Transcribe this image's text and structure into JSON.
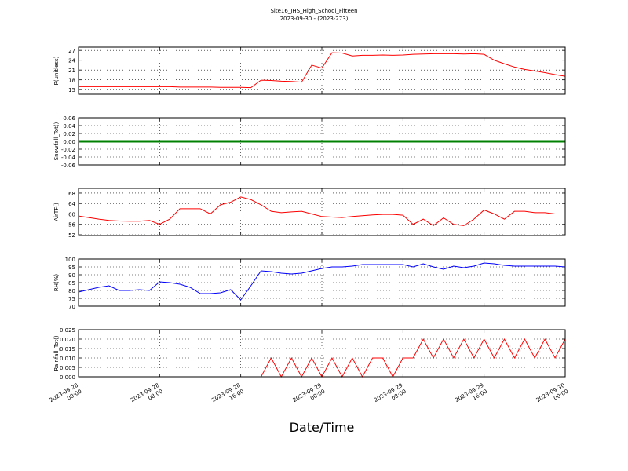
{
  "chart_data": [
    {
      "type": "line",
      "title": "Site16_JHS_High_School_Fifteen",
      "subtitle": "2023-09-30 - (2023-273)",
      "ylabel": "P(unitless)",
      "x": [
        "2023-09-28 00:00",
        "2023-09-28 01:00",
        "2023-09-28 02:00",
        "2023-09-28 03:00",
        "2023-09-28 04:00",
        "2023-09-28 05:00",
        "2023-09-28 06:00",
        "2023-09-28 07:00",
        "2023-09-28 08:00",
        "2023-09-28 09:00",
        "2023-09-28 10:00",
        "2023-09-28 11:00",
        "2023-09-28 12:00",
        "2023-09-28 13:00",
        "2023-09-28 14:00",
        "2023-09-28 15:00",
        "2023-09-28 16:00",
        "2023-09-28 17:00",
        "2023-09-28 18:00",
        "2023-09-28 19:00",
        "2023-09-28 20:00",
        "2023-09-28 21:00",
        "2023-09-28 22:00",
        "2023-09-28 23:00",
        "2023-09-29 00:00",
        "2023-09-29 01:00",
        "2023-09-29 02:00",
        "2023-09-29 03:00",
        "2023-09-29 04:00",
        "2023-09-29 05:00",
        "2023-09-29 06:00",
        "2023-09-29 07:00",
        "2023-09-29 08:00",
        "2023-09-29 09:00",
        "2023-09-29 10:00",
        "2023-09-29 11:00",
        "2023-09-29 12:00",
        "2023-09-29 13:00",
        "2023-09-29 14:00",
        "2023-09-29 15:00",
        "2023-09-29 16:00",
        "2023-09-29 17:00",
        "2023-09-29 18:00",
        "2023-09-29 19:00",
        "2023-09-29 20:00",
        "2023-09-29 21:00",
        "2023-09-29 22:00",
        "2023-09-29 23:00",
        "2023-09-30 00:00"
      ],
      "series": [
        {
          "color": "#ff0000",
          "values": [
            15.9,
            15.9,
            15.9,
            15.9,
            15.9,
            15.9,
            15.9,
            15.9,
            15.9,
            15.9,
            15.8,
            15.8,
            15.8,
            15.8,
            15.7,
            15.7,
            15.7,
            15.6,
            17.9,
            17.8,
            17.6,
            17.5,
            17.3,
            22.5,
            21.6,
            26.3,
            26.2,
            25.3,
            25.5,
            25.5,
            25.6,
            25.5,
            25.6,
            25.8,
            25.9,
            26,
            26,
            26,
            25.9,
            26,
            25.8,
            24,
            22.9,
            21.9,
            21.2,
            20.7,
            20.2,
            19.6,
            19.1
          ]
        }
      ],
      "ylim": [
        13.6,
        28
      ],
      "yticks": [
        15,
        18,
        21,
        24,
        27
      ],
      "grid": true
    },
    {
      "type": "line",
      "ylabel": "Snowfall_Tot()",
      "x": [
        "2023-09-28 00:00",
        "2023-09-28 01:00",
        "2023-09-28 02:00",
        "2023-09-28 03:00",
        "2023-09-28 04:00",
        "2023-09-28 05:00",
        "2023-09-28 06:00",
        "2023-09-28 07:00",
        "2023-09-28 08:00",
        "2023-09-28 09:00",
        "2023-09-28 10:00",
        "2023-09-28 11:00",
        "2023-09-28 12:00",
        "2023-09-28 13:00",
        "2023-09-28 14:00",
        "2023-09-28 15:00",
        "2023-09-28 16:00",
        "2023-09-28 17:00",
        "2023-09-28 18:00",
        "2023-09-28 19:00",
        "2023-09-28 20:00",
        "2023-09-28 21:00",
        "2023-09-28 22:00",
        "2023-09-28 23:00",
        "2023-09-29 00:00",
        "2023-09-29 01:00",
        "2023-09-29 02:00",
        "2023-09-29 03:00",
        "2023-09-29 04:00",
        "2023-09-29 05:00",
        "2023-09-29 06:00",
        "2023-09-29 07:00",
        "2023-09-29 08:00",
        "2023-09-29 09:00",
        "2023-09-29 10:00",
        "2023-09-29 11:00",
        "2023-09-29 12:00",
        "2023-09-29 13:00",
        "2023-09-29 14:00",
        "2023-09-29 15:00",
        "2023-09-29 16:00",
        "2023-09-29 17:00",
        "2023-09-29 18:00",
        "2023-09-29 19:00",
        "2023-09-29 20:00",
        "2023-09-29 21:00",
        "2023-09-29 22:00",
        "2023-09-29 23:00",
        "2023-09-30 00:00"
      ],
      "series": [
        {
          "color": "#008000",
          "values": [
            0,
            0,
            0,
            0,
            0,
            0,
            0,
            0,
            0,
            0,
            0,
            0,
            0,
            0,
            0,
            0,
            0,
            0,
            0,
            0,
            0,
            0,
            0,
            0,
            0,
            0,
            0,
            0,
            0,
            0,
            0,
            0,
            0,
            0,
            0,
            0,
            0,
            0,
            0,
            0,
            0,
            0,
            0,
            0,
            0,
            0,
            0,
            0,
            0
          ]
        }
      ],
      "ylim": [
        -0.06,
        0.06
      ],
      "yticks": [
        -0.06,
        -0.04,
        -0.02,
        {
          "value": 0,
          "label": "0.00"
        },
        0.02,
        0.04,
        0.06
      ],
      "grid": true
    },
    {
      "type": "line",
      "ylabel": "AirTF()",
      "x": [
        "2023-09-28 00:00",
        "2023-09-28 01:00",
        "2023-09-28 02:00",
        "2023-09-28 03:00",
        "2023-09-28 04:00",
        "2023-09-28 05:00",
        "2023-09-28 06:00",
        "2023-09-28 07:00",
        "2023-09-28 08:00",
        "2023-09-28 09:00",
        "2023-09-28 10:00",
        "2023-09-28 11:00",
        "2023-09-28 12:00",
        "2023-09-28 13:00",
        "2023-09-28 14:00",
        "2023-09-28 15:00",
        "2023-09-28 16:00",
        "2023-09-28 17:00",
        "2023-09-28 18:00",
        "2023-09-28 19:00",
        "2023-09-28 20:00",
        "2023-09-28 21:00",
        "2023-09-28 22:00",
        "2023-09-28 23:00",
        "2023-09-29 00:00",
        "2023-09-29 01:00",
        "2023-09-29 02:00",
        "2023-09-29 03:00",
        "2023-09-29 04:00",
        "2023-09-29 05:00",
        "2023-09-29 06:00",
        "2023-09-29 07:00",
        "2023-09-29 08:00",
        "2023-09-29 09:00",
        "2023-09-29 10:00",
        "2023-09-29 11:00",
        "2023-09-29 12:00",
        "2023-09-29 13:00",
        "2023-09-29 14:00",
        "2023-09-29 15:00",
        "2023-09-29 16:00",
        "2023-09-29 17:00",
        "2023-09-29 18:00",
        "2023-09-29 19:00",
        "2023-09-29 20:00",
        "2023-09-29 21:00",
        "2023-09-29 22:00",
        "2023-09-29 23:00",
        "2023-09-30 00:00"
      ],
      "series": [
        {
          "color": "#ff0000",
          "values": [
            59.2,
            58.6,
            58,
            57.5,
            57.3,
            57.2,
            57.2,
            57.5,
            56,
            58,
            62,
            62,
            62,
            60,
            63.5,
            64.5,
            66.5,
            65.5,
            63.5,
            61,
            60.5,
            60.8,
            61,
            60,
            59,
            58.8,
            58.6,
            59,
            59.3,
            59.6,
            59.8,
            59.8,
            59.5,
            56,
            58,
            55.5,
            58.5,
            56,
            55.5,
            58,
            61.5,
            60,
            58,
            61,
            61,
            60.5,
            60.5,
            60,
            60
          ]
        }
      ],
      "ylim": [
        51.7,
        69.8
      ],
      "yticks": [
        52,
        56,
        60,
        64,
        68
      ],
      "grid": true
    },
    {
      "type": "line",
      "ylabel": "RH(%)",
      "x": [
        "2023-09-28 00:00",
        "2023-09-28 01:00",
        "2023-09-28 02:00",
        "2023-09-28 03:00",
        "2023-09-28 04:00",
        "2023-09-28 05:00",
        "2023-09-28 06:00",
        "2023-09-28 07:00",
        "2023-09-28 08:00",
        "2023-09-28 09:00",
        "2023-09-28 10:00",
        "2023-09-28 11:00",
        "2023-09-28 12:00",
        "2023-09-28 13:00",
        "2023-09-28 14:00",
        "2023-09-28 15:00",
        "2023-09-28 16:00",
        "2023-09-28 17:00",
        "2023-09-28 18:00",
        "2023-09-28 19:00",
        "2023-09-28 20:00",
        "2023-09-28 21:00",
        "2023-09-28 22:00",
        "2023-09-28 23:00",
        "2023-09-29 00:00",
        "2023-09-29 01:00",
        "2023-09-29 02:00",
        "2023-09-29 03:00",
        "2023-09-29 04:00",
        "2023-09-29 05:00",
        "2023-09-29 06:00",
        "2023-09-29 07:00",
        "2023-09-29 08:00",
        "2023-09-29 09:00",
        "2023-09-29 10:00",
        "2023-09-29 11:00",
        "2023-09-29 12:00",
        "2023-09-29 13:00",
        "2023-09-29 14:00",
        "2023-09-29 15:00",
        "2023-09-29 16:00",
        "2023-09-29 17:00",
        "2023-09-29 18:00",
        "2023-09-29 19:00",
        "2023-09-29 20:00",
        "2023-09-29 21:00",
        "2023-09-29 22:00",
        "2023-09-29 23:00",
        "2023-09-30 00:00"
      ],
      "series": [
        {
          "color": "#0000ff",
          "values": [
            79,
            80.5,
            82,
            83,
            80,
            80,
            80.5,
            80,
            85.5,
            85,
            84,
            82,
            78,
            78,
            78.5,
            80.5,
            74,
            83,
            92.5,
            92,
            91,
            90.5,
            91,
            92.5,
            94,
            95,
            95,
            95.5,
            96.5,
            96.5,
            96.5,
            96.5,
            96.5,
            95,
            97,
            95,
            93.5,
            95.5,
            94.5,
            95.5,
            97.5,
            97,
            96,
            95.5,
            95.5,
            95.5,
            95.5,
            95.5,
            95
          ]
        }
      ],
      "ylim": [
        70,
        100
      ],
      "yticks": [
        70,
        75,
        80,
        85,
        90,
        95,
        100
      ],
      "grid": true
    },
    {
      "type": "line",
      "ylabel": "Rainfall_Tot()",
      "xlabel": "Date/Time",
      "x": [
        "2023-09-28 00:00",
        "2023-09-28 01:00",
        "2023-09-28 02:00",
        "2023-09-28 03:00",
        "2023-09-28 04:00",
        "2023-09-28 05:00",
        "2023-09-28 06:00",
        "2023-09-28 07:00",
        "2023-09-28 08:00",
        "2023-09-28 09:00",
        "2023-09-28 10:00",
        "2023-09-28 11:00",
        "2023-09-28 12:00",
        "2023-09-28 13:00",
        "2023-09-28 14:00",
        "2023-09-28 15:00",
        "2023-09-28 16:00",
        "2023-09-28 17:00",
        "2023-09-28 18:00",
        "2023-09-28 19:00",
        "2023-09-28 20:00",
        "2023-09-28 21:00",
        "2023-09-28 22:00",
        "2023-09-28 23:00",
        "2023-09-29 00:00",
        "2023-09-29 01:00",
        "2023-09-29 02:00",
        "2023-09-29 03:00",
        "2023-09-29 04:00",
        "2023-09-29 05:00",
        "2023-09-29 06:00",
        "2023-09-29 07:00",
        "2023-09-29 08:00",
        "2023-09-29 09:00",
        "2023-09-29 10:00",
        "2023-09-29 11:00",
        "2023-09-29 12:00",
        "2023-09-29 13:00",
        "2023-09-29 14:00",
        "2023-09-29 15:00",
        "2023-09-29 16:00",
        "2023-09-29 17:00",
        "2023-09-29 18:00",
        "2023-09-29 19:00",
        "2023-09-29 20:00",
        "2023-09-29 21:00",
        "2023-09-29 22:00",
        "2023-09-29 23:00",
        "2023-09-30 00:00"
      ],
      "series": [
        {
          "color": "#ff0000",
          "values": [
            0,
            0,
            0,
            0,
            0,
            0,
            0,
            0,
            0,
            0,
            0,
            0,
            0,
            0,
            0,
            0,
            0,
            0,
            0,
            0.01,
            0,
            0.01,
            0,
            0.01,
            0,
            0.01,
            0,
            0.01,
            0,
            0.01,
            0.01,
            0,
            0.01,
            0.01,
            0.02,
            0.01,
            0.02,
            0.01,
            0.02,
            0.01,
            0.02,
            0.01,
            0.02,
            0.01,
            0.02,
            0.01,
            0.02,
            0.01,
            0.02
          ]
        }
      ],
      "ylim": [
        0,
        0.025
      ],
      "yticks": [
        {
          "value": 0,
          "label": "0.000"
        },
        0.005,
        {
          "value": 0.01,
          "label": "0.010"
        },
        0.015,
        {
          "value": 0.02,
          "label": "0.020"
        },
        0.025
      ],
      "grid": true,
      "xlim": [
        "2023-09-28 00:00",
        "2023-09-30 00:00"
      ],
      "xticks": [
        "2023-09-28 00:00",
        "2023-09-28 08:00",
        "2023-09-28 16:00",
        "2023-09-29 00:00",
        "2023-09-29 08:00",
        "2023-09-29 16:00",
        "2023-09-30 00:00"
      ]
    }
  ]
}
